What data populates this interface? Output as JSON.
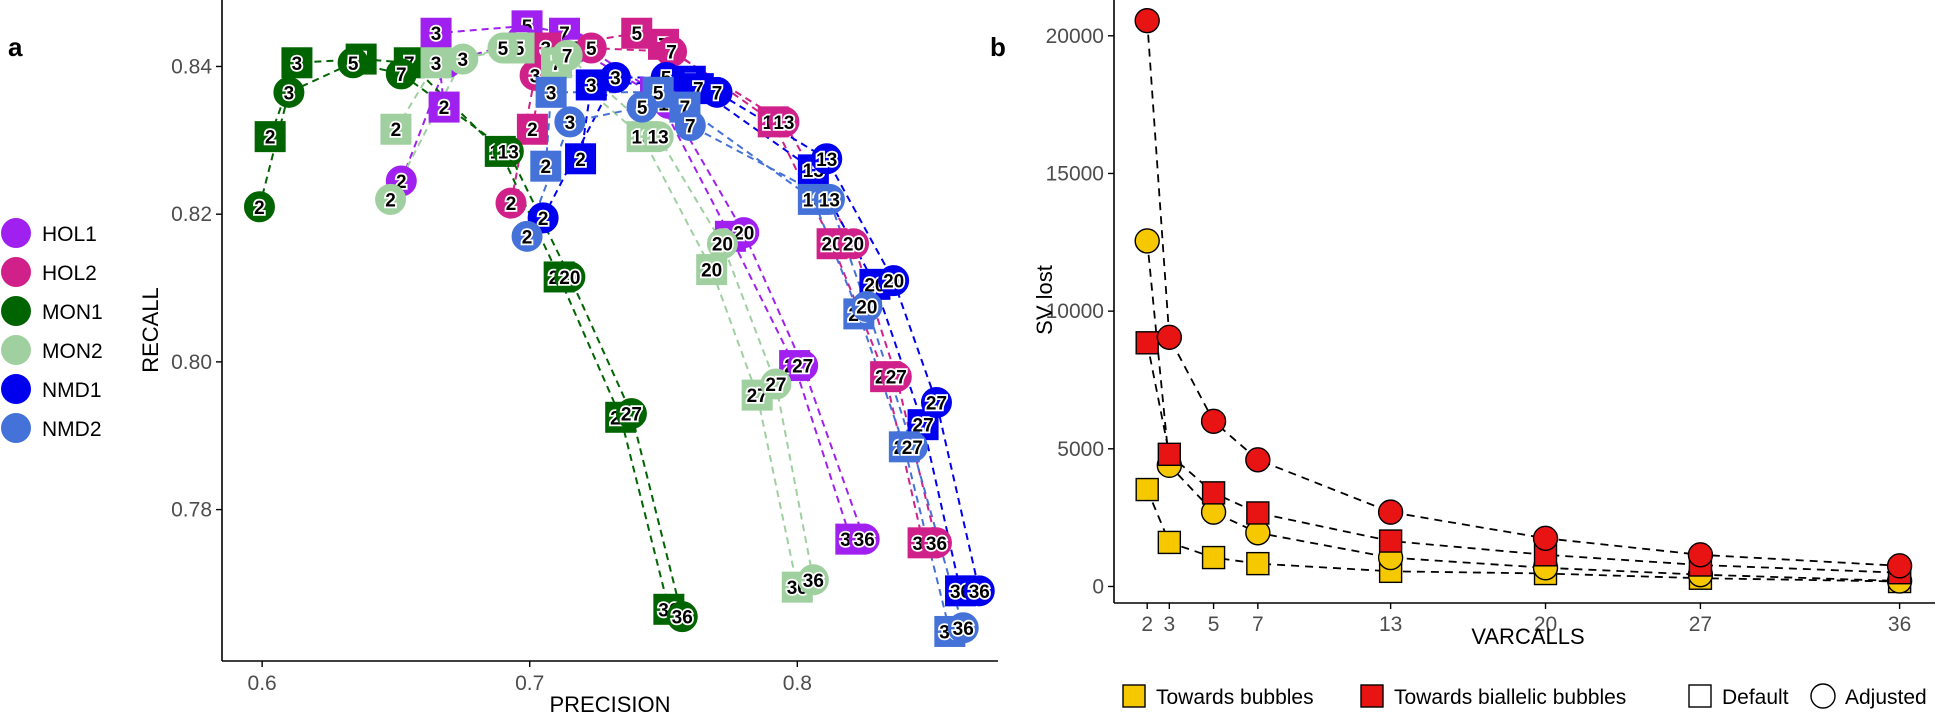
{
  "chart_data": [
    {
      "panel": "a",
      "type": "scatter",
      "xlabel": "PRECISION",
      "ylabel": "RECALL",
      "xlim": [
        0.585,
        0.875
      ],
      "ylim": [
        0.7595,
        0.849
      ],
      "xticks": [
        0.6,
        0.7,
        0.8
      ],
      "yticks": [
        0.78,
        0.8,
        0.82,
        0.84
      ],
      "xtick_labels": [
        "0.6",
        "0.7",
        "0.8"
      ],
      "ytick_labels": [
        "0.78",
        "0.80",
        "0.82",
        "0.84"
      ],
      "grid": false,
      "legend_position": "left",
      "point_labels": [
        "2",
        "3",
        "5",
        "7",
        "13",
        "20",
        "27",
        "36"
      ],
      "series": [
        {
          "name": "HOL1",
          "color": "#A020F0",
          "default": [
            [
              0.668,
              0.8345
            ],
            [
              0.665,
              0.8445
            ],
            [
              0.699,
              0.8455
            ],
            [
              0.713,
              0.8445
            ],
            [
              0.747,
              0.8365
            ],
            [
              0.775,
              0.817
            ],
            [
              0.799,
              0.7995
            ],
            [
              0.82,
              0.776
            ]
          ],
          "adjusted": [
            [
              0.652,
              0.8245
            ],
            [
              0.669,
              0.8405
            ],
            [
              0.697,
              0.8435
            ],
            [
              0.717,
              0.8425
            ],
            [
              0.752,
              0.835
            ],
            [
              0.78,
              0.8175
            ],
            [
              0.802,
              0.7995
            ],
            [
              0.825,
              0.776
            ]
          ]
        },
        {
          "name": "HOL2",
          "color": "#D0208A",
          "default": [
            [
              0.701,
              0.8315
            ],
            [
              0.706,
              0.8425
            ],
            [
              0.74,
              0.8445
            ],
            [
              0.75,
              0.843
            ],
            [
              0.791,
              0.8325
            ],
            [
              0.813,
              0.816
            ],
            [
              0.833,
              0.798
            ],
            [
              0.847,
              0.7755
            ]
          ],
          "adjusted": [
            [
              0.693,
              0.8215
            ],
            [
              0.702,
              0.8388
            ],
            [
              0.723,
              0.8425
            ],
            [
              0.753,
              0.842
            ],
            [
              0.795,
              0.8325
            ],
            [
              0.821,
              0.816
            ],
            [
              0.837,
              0.798
            ],
            [
              0.852,
              0.7755
            ]
          ]
        },
        {
          "name": "MON1",
          "color": "#006400",
          "default": [
            [
              0.603,
              0.8305
            ],
            [
              0.613,
              0.8405
            ],
            [
              0.637,
              0.841
            ],
            [
              0.655,
              0.8405
            ],
            [
              0.689,
              0.8285
            ],
            [
              0.711,
              0.8115
            ],
            [
              0.734,
              0.7925
            ],
            [
              0.752,
              0.7665
            ]
          ],
          "adjusted": [
            [
              0.599,
              0.821
            ],
            [
              0.61,
              0.8365
            ],
            [
              0.634,
              0.8405
            ],
            [
              0.652,
              0.839
            ],
            [
              0.692,
              0.8285
            ],
            [
              0.715,
              0.8115
            ],
            [
              0.738,
              0.793
            ],
            [
              0.757,
              0.7655
            ]
          ]
        },
        {
          "name": "MON2",
          "color": "#A0D0A0",
          "default": [
            [
              0.65,
              0.8315
            ],
            [
              0.665,
              0.8405
            ],
            [
              0.696,
              0.8425
            ],
            [
              0.71,
              0.8405
            ],
            [
              0.742,
              0.8305
            ],
            [
              0.768,
              0.8125
            ],
            [
              0.785,
              0.7955
            ],
            [
              0.8,
              0.7695
            ]
          ],
          "adjusted": [
            [
              0.648,
              0.822
            ],
            [
              0.675,
              0.841
            ],
            [
              0.69,
              0.8425
            ],
            [
              0.714,
              0.8415
            ],
            [
              0.748,
              0.8305
            ],
            [
              0.772,
              0.816
            ],
            [
              0.792,
              0.797
            ],
            [
              0.806,
              0.7705
            ]
          ]
        },
        {
          "name": "NMD1",
          "color": "#0000EE",
          "default": [
            [
              0.719,
              0.8275
            ],
            [
              0.723,
              0.8375
            ],
            [
              0.76,
              0.838
            ],
            [
              0.763,
              0.837
            ],
            [
              0.806,
              0.826
            ],
            [
              0.829,
              0.8105
            ],
            [
              0.847,
              0.7915
            ],
            [
              0.861,
              0.769
            ]
          ],
          "adjusted": [
            [
              0.705,
              0.8195
            ],
            [
              0.732,
              0.8385
            ],
            [
              0.751,
              0.8385
            ],
            [
              0.77,
              0.8365
            ],
            [
              0.811,
              0.8275
            ],
            [
              0.836,
              0.811
            ],
            [
              0.852,
              0.7945
            ],
            [
              0.868,
              0.769
            ]
          ]
        },
        {
          "name": "NMD2",
          "color": "#4472D8",
          "default": [
            [
              0.706,
              0.8265
            ],
            [
              0.708,
              0.8365
            ],
            [
              0.748,
              0.8365
            ],
            [
              0.758,
              0.8345
            ],
            [
              0.806,
              0.822
            ],
            [
              0.823,
              0.8065
            ],
            [
              0.84,
              0.7885
            ],
            [
              0.857,
              0.7635
            ]
          ],
          "adjusted": [
            [
              0.699,
              0.817
            ],
            [
              0.715,
              0.8325
            ],
            [
              0.742,
              0.8345
            ],
            [
              0.76,
              0.832
            ],
            [
              0.812,
              0.822
            ],
            [
              0.826,
              0.8075
            ],
            [
              0.843,
              0.7885
            ],
            [
              0.862,
              0.764
            ]
          ]
        }
      ]
    },
    {
      "panel": "b",
      "type": "scatter",
      "xlabel": "VARCALLS",
      "ylabel": "SV lost",
      "xlim": [
        0.5,
        37.6
      ],
      "ylim": [
        -600,
        21300
      ],
      "xticks": [
        2,
        3,
        5,
        7,
        13,
        20,
        27,
        36
      ],
      "yticks": [
        0,
        5000,
        10000,
        15000,
        20000
      ],
      "grid": false,
      "legend_position": "bottom",
      "x": [
        2,
        3,
        5,
        7,
        13,
        20,
        27,
        36
      ],
      "series": [
        {
          "name": "Towards bubbles, Default",
          "color": "#F5C800",
          "shape": "square",
          "values": [
            3520,
            1600,
            1050,
            830,
            550,
            470,
            300,
            180
          ]
        },
        {
          "name": "Towards bubbles, Adjusted",
          "color": "#F5C800",
          "shape": "circle",
          "values": [
            12550,
            4400,
            2700,
            1950,
            1050,
            680,
            430,
            200
          ]
        },
        {
          "name": "Towards biallelic bubbles, Default",
          "color": "#E81414",
          "shape": "square",
          "values": [
            8850,
            4800,
            3400,
            2670,
            1650,
            1150,
            780,
            500
          ]
        },
        {
          "name": "Towards biallelic bubbles, Adjusted",
          "color": "#E81414",
          "shape": "circle",
          "values": [
            20550,
            9050,
            6000,
            4600,
            2700,
            1750,
            1150,
            750
          ]
        }
      ]
    }
  ],
  "panel_labels": {
    "a": "a",
    "b": "b"
  },
  "legend_b": {
    "fill_items": [
      {
        "label": "Towards bubbles",
        "color": "#F5C800"
      },
      {
        "label": "Towards biallelic bubbles",
        "color": "#E81414"
      }
    ],
    "shape_items": [
      {
        "label": "Default",
        "shape": "square"
      },
      {
        "label": "Adjusted",
        "shape": "circle"
      }
    ]
  }
}
